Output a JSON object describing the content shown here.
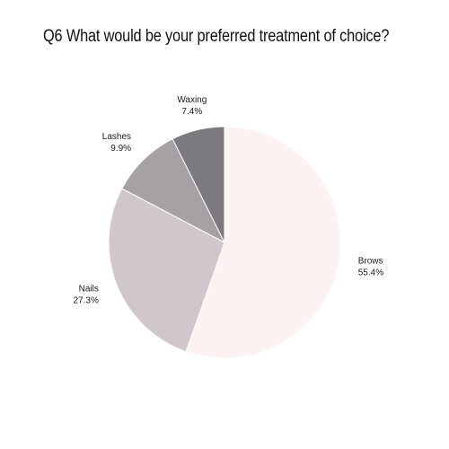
{
  "chart_data": {
    "type": "pie",
    "title": "Q6 What would be your preferred treatment of choice?",
    "slices": [
      {
        "label": "Brows",
        "value": 55.4,
        "display": "55.4%",
        "color": "#fdf2f2"
      },
      {
        "label": "Nails",
        "value": 27.3,
        "display": "27.3%",
        "color": "#cfc7cb"
      },
      {
        "label": "Lashes",
        "value": 9.9,
        "display": "9.9%",
        "color": "#a6a1a5"
      },
      {
        "label": "Waxing",
        "value": 7.4,
        "display": "7.4%",
        "color": "#7d7a7f"
      }
    ],
    "start_at": "top",
    "direction": "clockwise",
    "legend": "none"
  }
}
